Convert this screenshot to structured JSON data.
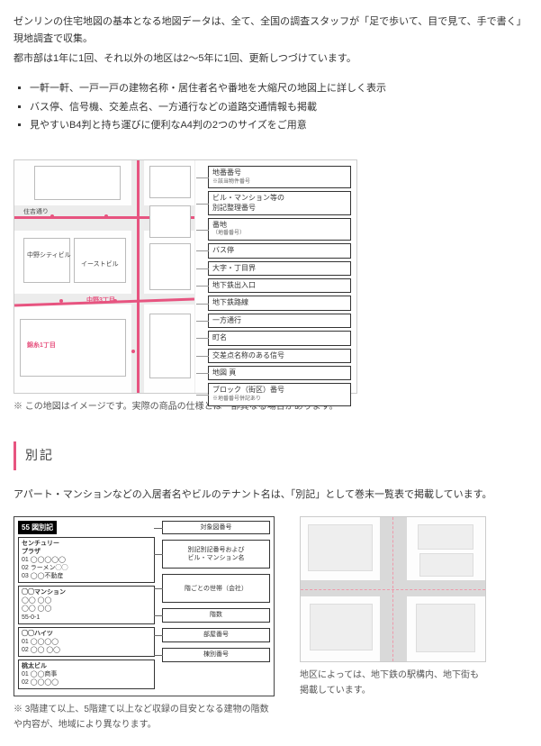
{
  "intro": {
    "p1": "ゼンリンの住宅地図の基本となる地図データは、全て、全国の調査スタッフが「足で歩いて、目で見て、手で書く」現地調査で収集。",
    "p2": "都市部は1年に1回、それ以外の地区は2〜5年に1回、更新しつづけています。"
  },
  "features": [
    "一軒一軒、一戸一戸の建物名称・居住者名や番地を大縮尺の地図上に詳しく表示",
    "バス停、信号機、交差点名、一方通行などの道路交通情報も掲載",
    "見やすいB4判と持ち運びに便利なA4判の2つのサイズをご用意"
  ],
  "map": {
    "labels": {
      "road_name": "住吉通り",
      "bldg1": "中野シティビル",
      "bldg2": "イーストビル",
      "ward1": "中野3丁目",
      "ward2": "錦糸1丁目"
    },
    "callouts": [
      {
        "label": "地番番号",
        "sub": "※該当物件番号"
      },
      {
        "label": "ビル・マンション等の\n別記整理番号"
      },
      {
        "label": "番地",
        "sub": "（地番番号）"
      },
      {
        "label": "バス停"
      },
      {
        "label": "大字・丁目界"
      },
      {
        "label": "地下鉄出入口"
      },
      {
        "label": "地下鉄路線"
      },
      {
        "label": "一方通行"
      },
      {
        "label": "町名"
      },
      {
        "label": "交差点名称のある信号"
      },
      {
        "label": "地図 頁"
      },
      {
        "label": "ブロック（街区）番号",
        "sub": "※地番番号併記あり"
      }
    ],
    "note": "※ この地図はイメージです。実際の商品の仕様とは一部異なる場合があります。"
  },
  "bekki": {
    "heading": "別記",
    "intro": "アパート・マンションなどの入居者名やビルのテナント名は、「別記」として巻末一覧表で掲載しています。",
    "zubekki_title": "55 図別記",
    "left_blocks": [
      {
        "name": "センチュリー\nプラザ",
        "lines": [
          "01 ◯◯◯◯◯",
          "02 ラーメン◯◯",
          "03 ◯◯不動産"
        ]
      },
      {
        "name": "◯◯マンション",
        "lines": [
          "◯◯ ◯◯",
          "◯◯ ◯◯",
          "55-0-1"
        ]
      },
      {
        "name": "◯◯ハイツ",
        "lines": [
          "01 ◯◯◯◯",
          "02 ◯◯ ◯◯"
        ]
      },
      {
        "name": "桃太ビル",
        "lines": [
          "01 ◯◯商事",
          "02 ◯◯◯◯"
        ]
      }
    ],
    "right_caps": [
      {
        "text": "対象図番号"
      },
      {
        "text": "別記別記番号および\nビル・マンション名",
        "tall": true
      },
      {
        "text": "階ごとの世帯（会社）",
        "tall": true
      },
      {
        "text": "階数"
      },
      {
        "text": "部屋番号"
      },
      {
        "text": "棟別番号"
      }
    ],
    "left_note": "※ 3階建て以上、5階建て以上など収録の目安となる建物の階数や内容が、地域により異なります。",
    "right_note": "地区によっては、地下鉄の駅構内、地下街も掲載しています。"
  },
  "colors": {
    "accent": "#e75480"
  }
}
